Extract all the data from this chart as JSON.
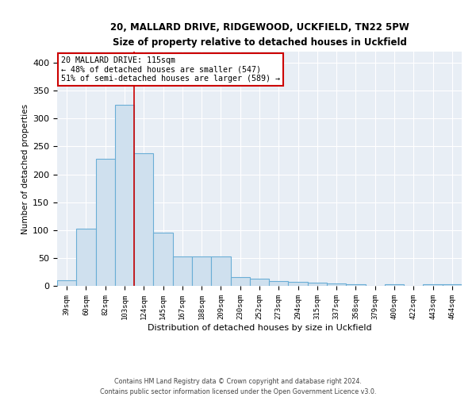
{
  "title1": "20, MALLARD DRIVE, RIDGEWOOD, UCKFIELD, TN22 5PW",
  "title2": "Size of property relative to detached houses in Uckfield",
  "xlabel": "Distribution of detached houses by size in Uckfield",
  "ylabel": "Number of detached properties",
  "categories": [
    "39sqm",
    "60sqm",
    "82sqm",
    "103sqm",
    "124sqm",
    "145sqm",
    "167sqm",
    "188sqm",
    "209sqm",
    "230sqm",
    "252sqm",
    "273sqm",
    "294sqm",
    "315sqm",
    "337sqm",
    "358sqm",
    "379sqm",
    "400sqm",
    "422sqm",
    "443sqm",
    "464sqm"
  ],
  "values": [
    10,
    103,
    228,
    325,
    238,
    95,
    53,
    53,
    53,
    15,
    13,
    8,
    7,
    5,
    4,
    3,
    0,
    3,
    0,
    3,
    3
  ],
  "bar_color": "#cfe0ee",
  "bar_edge_color": "#6aaed6",
  "vline_color": "#cc0000",
  "vline_x": 3.5,
  "annotation_text_line1": "20 MALLARD DRIVE: 115sqm",
  "annotation_text_line2": "← 48% of detached houses are smaller (547)",
  "annotation_text_line3": "51% of semi-detached houses are larger (589) →",
  "annotation_box_color": "white",
  "annotation_box_edge_color": "#cc0000",
  "footer_text": "Contains HM Land Registry data © Crown copyright and database right 2024.\nContains public sector information licensed under the Open Government Licence v3.0.",
  "background_color": "#e8eef5",
  "grid_color": "white",
  "ylim": [
    0,
    420
  ],
  "yticks": [
    0,
    50,
    100,
    150,
    200,
    250,
    300,
    350,
    400
  ]
}
